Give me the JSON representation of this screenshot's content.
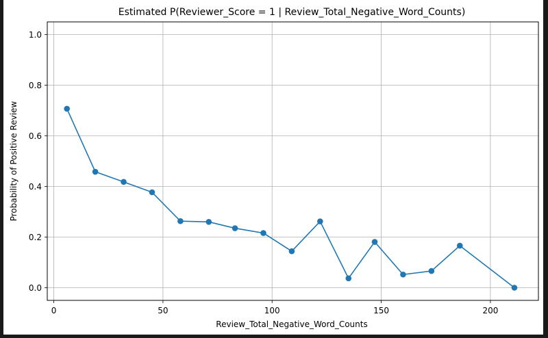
{
  "chart_data": {
    "type": "line",
    "title": "Estimated P(Reviewer_Score = 1 | Review_Total_Negative_Word_Counts)",
    "xlabel": "Review_Total_Negative_Word_Counts",
    "ylabel": "Probability of Positive Review",
    "xlim": [
      -3,
      222
    ],
    "ylim": [
      -0.05,
      1.05
    ],
    "xticks": [
      0,
      50,
      100,
      150,
      200
    ],
    "xtick_labels": [
      "0",
      "50",
      "100",
      "150",
      "200"
    ],
    "yticks": [
      0.0,
      0.2,
      0.4,
      0.6,
      0.8,
      1.0
    ],
    "ytick_labels": [
      "0.0",
      "0.2",
      "0.4",
      "0.6",
      "0.8",
      "1.0"
    ],
    "grid": true,
    "series": [
      {
        "x": [
          6,
          19,
          32,
          45,
          58,
          71,
          83,
          96,
          109,
          122,
          135,
          147,
          160,
          173,
          186,
          211
        ],
        "y": [
          0.707,
          0.458,
          0.418,
          0.377,
          0.263,
          0.26,
          0.235,
          0.216,
          0.144,
          0.262,
          0.037,
          0.181,
          0.052,
          0.066,
          0.166,
          0.0
        ],
        "color": "#1f77b4",
        "marker": "circle"
      }
    ]
  }
}
